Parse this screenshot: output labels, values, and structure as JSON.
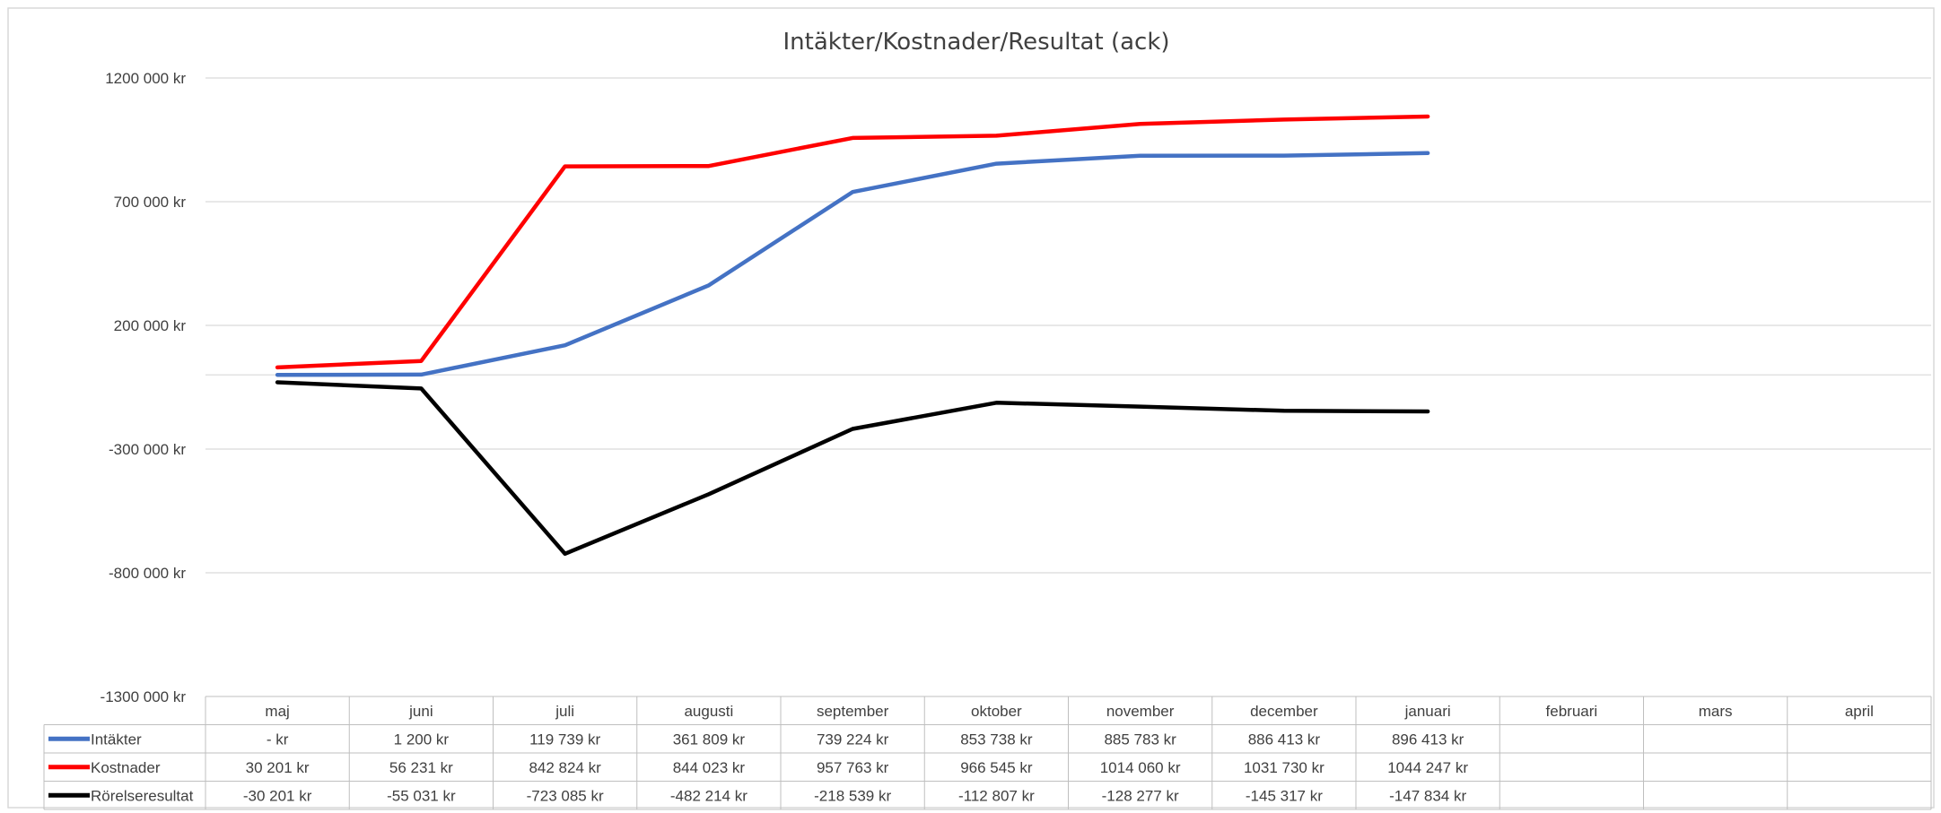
{
  "chart_data": {
    "type": "line",
    "title": "Intäkter/Kostnader/Resultat (ack)",
    "ylim": [
      -1300000,
      1200000
    ],
    "y_ticks": [
      1200000,
      700000,
      200000,
      -300000,
      -800000,
      -1300000
    ],
    "y_tick_labels": [
      "1200 000 kr",
      "700 000 kr",
      "200 000 kr",
      "-300 000 kr",
      "-800 000 kr",
      "-1300 000 kr"
    ],
    "grid": true,
    "legend": "data-table",
    "categories": [
      "maj",
      "juni",
      "juli",
      "augusti",
      "september",
      "oktober",
      "november",
      "december",
      "januari",
      "februari",
      "mars",
      "april"
    ],
    "series": [
      {
        "name": "Intäkter",
        "color": "#4472C4",
        "values": [
          0,
          1200,
          119739,
          361809,
          739224,
          853738,
          885783,
          886413,
          896413,
          null,
          null,
          null
        ],
        "labels": [
          "-   kr",
          "1 200 kr",
          "119 739 kr",
          "361 809 kr",
          "739 224 kr",
          "853 738 kr",
          "885 783 kr",
          "886 413 kr",
          "896 413 kr",
          "",
          "",
          ""
        ]
      },
      {
        "name": "Kostnader",
        "color": "#FF0000",
        "values": [
          30201,
          56231,
          842824,
          844023,
          957763,
          966545,
          1014060,
          1031730,
          1044247,
          null,
          null,
          null
        ],
        "labels": [
          "30 201 kr",
          "56 231 kr",
          "842 824 kr",
          "844 023 kr",
          "957 763 kr",
          "966 545 kr",
          "1014 060 kr",
          "1031 730 kr",
          "1044 247 kr",
          "",
          "",
          ""
        ]
      },
      {
        "name": "Rörelseresultat",
        "color": "#000000",
        "values": [
          -30201,
          -55031,
          -723085,
          -482214,
          -218539,
          -112807,
          -128277,
          -145317,
          -147834,
          null,
          null,
          null
        ],
        "labels": [
          "-30 201 kr",
          "-55 031 kr",
          "-723 085 kr",
          "-482 214 kr",
          "-218 539 kr",
          "-112 807 kr",
          "-128 277 kr",
          "-145 317 kr",
          "-147 834 kr",
          "",
          "",
          ""
        ]
      }
    ]
  }
}
